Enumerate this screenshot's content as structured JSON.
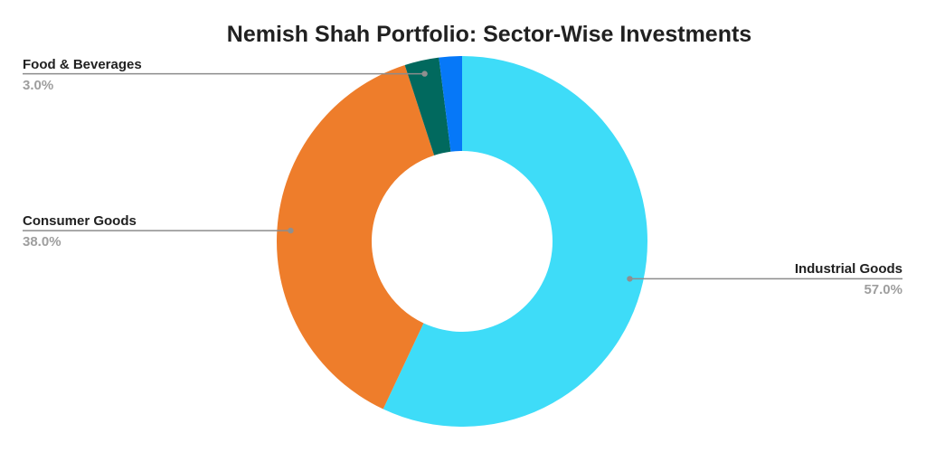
{
  "chart_data": {
    "type": "pie",
    "subtype": "donut",
    "title": "Nemish Shah Portfolio: Sector-Wise Investments",
    "total": 100,
    "unit": "%",
    "direction": "clockwise",
    "start_angle_deg": 0,
    "hole_radius_ratio": 0.49,
    "legend_position": "none",
    "label_style": "external horizontal leader lines with dot anchors; bold name above line, gray percent below",
    "slices": [
      {
        "label": "Industrial Goods",
        "value": 57.0,
        "pct_label": "57.0%",
        "color": "#3EDCF8"
      },
      {
        "label": "Consumer Goods",
        "value": 38.0,
        "pct_label": "38.0%",
        "color": "#EE7D2B"
      },
      {
        "label": "Food & Beverages",
        "value": 3.0,
        "pct_label": "3.0%",
        "color": "#01695E"
      },
      {
        "label": "",
        "value": 2.0,
        "pct_label": "",
        "color": "#0678F8"
      }
    ]
  },
  "styles": {
    "background": "#FFFFFF",
    "title_color": "#212121",
    "label_name_color": "#212121",
    "label_pct_color": "#9E9E9E",
    "leader_line_color": "#8C8C8C",
    "leader_dot_color": "#8F8F8F"
  }
}
